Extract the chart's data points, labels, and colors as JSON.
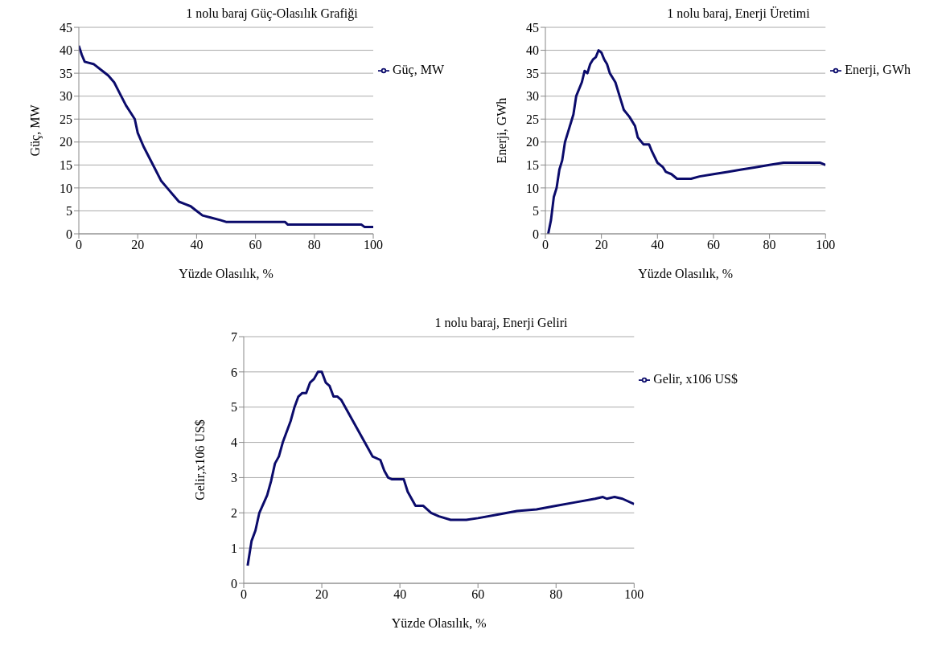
{
  "chart_data": [
    {
      "type": "line",
      "title": "1 nolu baraj Güç-Olasılık Grafiği",
      "xlabel": "Yüzde Olasılık, %",
      "ylabel": "Güç, MW",
      "xlim": [
        0,
        100
      ],
      "xticks": [
        0,
        20,
        40,
        60,
        80,
        100
      ],
      "ylim": [
        0,
        45
      ],
      "yticks": [
        0,
        5,
        10,
        15,
        20,
        25,
        30,
        35,
        40,
        45
      ],
      "grid": "y",
      "legend": "top right",
      "marker": "none",
      "line_style": "solid",
      "series": [
        {
          "name": "Güç, MW",
          "color": "#0b0b6b",
          "x": [
            0,
            1,
            2,
            5,
            8,
            10,
            12,
            14,
            16,
            18,
            19,
            20,
            22,
            24,
            26,
            28,
            30,
            32,
            34,
            36,
            38,
            40,
            42,
            45,
            48,
            50,
            60,
            70,
            71,
            80,
            90,
            96,
            97,
            100
          ],
          "values": [
            41,
            39,
            37.5,
            37,
            35.5,
            34.5,
            33,
            30.5,
            28,
            26,
            25,
            22,
            19,
            16.5,
            14,
            11.5,
            10,
            8.5,
            7,
            6.5,
            6,
            5,
            4,
            3.5,
            3,
            2.6,
            2.6,
            2.6,
            2,
            2,
            2,
            2,
            1.5,
            1.5
          ]
        }
      ]
    },
    {
      "type": "line",
      "title": "1 nolu baraj, Enerji Üretimi",
      "xlabel": "Yüzde Olasılık, %",
      "ylabel": "Enerji, GWh",
      "xlim": [
        0,
        100
      ],
      "xticks": [
        0,
        20,
        40,
        60,
        80,
        100
      ],
      "ylim": [
        0,
        45
      ],
      "yticks": [
        0,
        5,
        10,
        15,
        20,
        25,
        30,
        35,
        40,
        45
      ],
      "grid": "y",
      "legend": "top right",
      "marker": "none",
      "line_style": "solid",
      "series": [
        {
          "name": "Enerji, GWh",
          "color": "#0b0b6b",
          "x": [
            1,
            2,
            3,
            4,
            5,
            6,
            7,
            8,
            10,
            11,
            13,
            14,
            15,
            16,
            17,
            18,
            19,
            20,
            21,
            22,
            23,
            24,
            25,
            27,
            28,
            30,
            32,
            33,
            35,
            37,
            38,
            40,
            42,
            43,
            45,
            47,
            52,
            55,
            60,
            65,
            70,
            75,
            80,
            85,
            90,
            98,
            100
          ],
          "values": [
            0,
            3,
            8,
            10,
            14,
            16,
            20,
            22,
            26,
            30,
            33,
            35.5,
            35,
            37,
            38,
            38.5,
            40,
            39.5,
            38,
            37,
            35,
            34,
            33,
            29,
            27,
            25.5,
            23.5,
            21,
            19.5,
            19.5,
            18,
            15.5,
            14.5,
            13.5,
            13,
            12,
            12,
            12.5,
            13,
            13.5,
            14,
            14.5,
            15,
            15.5,
            15.5,
            15.5,
            15
          ]
        }
      ]
    },
    {
      "type": "line",
      "title": "1 nolu baraj, Enerji Geliri",
      "xlabel": "Yüzde Olasılık, %",
      "ylabel": "Gelir,x106 US$",
      "xlim": [
        0,
        100
      ],
      "xticks": [
        0,
        20,
        40,
        60,
        80,
        100
      ],
      "ylim": [
        0,
        7
      ],
      "yticks": [
        0,
        1,
        2,
        3,
        4,
        5,
        6,
        7
      ],
      "grid": "y",
      "legend": "top right",
      "marker": "none",
      "line_style": "solid",
      "series": [
        {
          "name": "Gelir, x106 US$",
          "color": "#0b0b6b",
          "x": [
            1,
            2,
            3,
            4,
            6,
            7,
            8,
            9,
            10,
            12,
            13,
            14,
            15,
            16,
            17,
            18,
            19,
            20,
            21,
            22,
            23,
            24,
            25,
            27,
            28,
            30,
            31,
            32,
            33,
            35,
            36,
            37,
            38,
            41,
            42,
            43,
            44,
            46,
            48,
            50,
            53,
            57,
            60,
            65,
            70,
            75,
            80,
            85,
            90,
            92,
            93,
            95,
            97,
            100
          ],
          "values": [
            0.5,
            1.2,
            1.5,
            2,
            2.5,
            2.9,
            3.4,
            3.6,
            4,
            4.6,
            5,
            5.3,
            5.4,
            5.4,
            5.7,
            5.8,
            6,
            6,
            5.7,
            5.6,
            5.3,
            5.3,
            5.2,
            4.8,
            4.6,
            4.2,
            4,
            3.8,
            3.6,
            3.5,
            3.2,
            3,
            2.95,
            2.95,
            2.6,
            2.4,
            2.2,
            2.2,
            2,
            1.9,
            1.8,
            1.8,
            1.85,
            1.95,
            2.05,
            2.1,
            2.2,
            2.3,
            2.4,
            2.45,
            2.4,
            2.45,
            2.4,
            2.25
          ]
        }
      ]
    }
  ]
}
